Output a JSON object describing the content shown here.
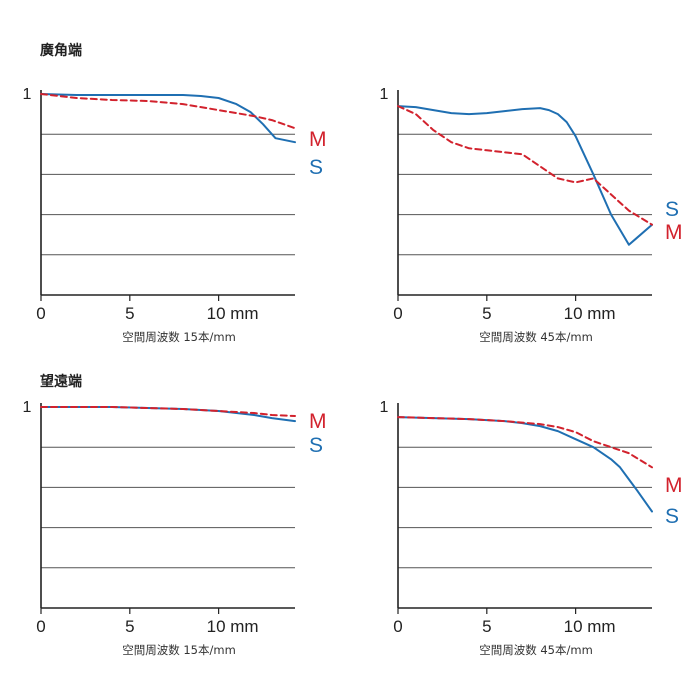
{
  "sections": [
    {
      "title": "廣角端"
    },
    {
      "title": "望遠端"
    }
  ],
  "colors": {
    "S": "#1f6fb2",
    "M": "#d2222d",
    "grid": "#555555",
    "axis": "#222222"
  },
  "chart_data": [
    {
      "type": "line",
      "section": 0,
      "xlabel": "空間周波数 15本/mm",
      "xticks": [
        "0",
        "5",
        "10 mm"
      ],
      "xtick_values": [
        0,
        5,
        10
      ],
      "ytick_label": "1",
      "xlim": [
        0,
        14.3
      ],
      "ylim": [
        0,
        1
      ],
      "grid_y": [
        0.2,
        0.4,
        0.6,
        0.8
      ],
      "series": [
        {
          "name": "S",
          "style": "solid",
          "x": [
            0,
            2,
            4,
            6,
            8,
            9,
            10,
            11,
            11.8,
            12.5,
            13.2,
            14.3
          ],
          "y": [
            1.0,
            0.995,
            0.995,
            0.995,
            0.995,
            0.99,
            0.98,
            0.95,
            0.91,
            0.85,
            0.78,
            0.76
          ]
        },
        {
          "name": "M",
          "style": "dashed",
          "x": [
            0,
            2,
            4,
            6,
            8,
            10,
            12,
            13,
            14.3
          ],
          "y": [
            1.0,
            0.98,
            0.97,
            0.965,
            0.95,
            0.92,
            0.89,
            0.87,
            0.83
          ]
        }
      ],
      "legend_order": [
        "M",
        "S"
      ],
      "legend_placement": "right"
    },
    {
      "type": "line",
      "section": 0,
      "xlabel": "空間周波数 45本/mm",
      "xticks": [
        "0",
        "5",
        "10 mm"
      ],
      "xtick_values": [
        0,
        5,
        10
      ],
      "ytick_label": "1",
      "xlim": [
        0,
        14.3
      ],
      "ylim": [
        0,
        1
      ],
      "grid_y": [
        0.2,
        0.4,
        0.6,
        0.8
      ],
      "series": [
        {
          "name": "S",
          "style": "solid",
          "x": [
            0,
            1,
            2,
            3,
            4,
            5,
            6,
            7,
            8,
            8.5,
            9,
            9.5,
            10,
            11,
            12,
            13,
            14.3
          ],
          "y": [
            0.94,
            0.935,
            0.92,
            0.905,
            0.9,
            0.905,
            0.915,
            0.925,
            0.93,
            0.92,
            0.9,
            0.86,
            0.79,
            0.6,
            0.4,
            0.25,
            0.35
          ]
        },
        {
          "name": "M",
          "style": "dashed",
          "x": [
            0,
            1,
            2,
            3,
            4,
            5,
            6,
            7,
            8,
            9,
            10,
            11,
            12,
            13,
            14.3
          ],
          "y": [
            0.94,
            0.9,
            0.82,
            0.76,
            0.73,
            0.72,
            0.71,
            0.7,
            0.64,
            0.58,
            0.56,
            0.58,
            0.5,
            0.42,
            0.35
          ]
        }
      ],
      "legend_order": [
        "S",
        "M"
      ],
      "legend_placement": "right"
    },
    {
      "type": "line",
      "section": 1,
      "xlabel": "空間周波数 15本/mm",
      "xticks": [
        "0",
        "5",
        "10 mm"
      ],
      "xtick_values": [
        0,
        5,
        10
      ],
      "ytick_label": "1",
      "xlim": [
        0,
        14.3
      ],
      "ylim": [
        0,
        1
      ],
      "grid_y": [
        0.2,
        0.4,
        0.6,
        0.8
      ],
      "series": [
        {
          "name": "S",
          "style": "solid",
          "x": [
            0,
            2,
            4,
            6,
            8,
            10,
            11,
            12,
            13,
            14.3
          ],
          "y": [
            1.0,
            1.0,
            1.0,
            0.995,
            0.99,
            0.98,
            0.97,
            0.96,
            0.945,
            0.93
          ]
        },
        {
          "name": "M",
          "style": "dashed",
          "x": [
            0,
            2,
            4,
            6,
            8,
            10,
            11,
            12,
            13,
            14.3
          ],
          "y": [
            1.0,
            1.0,
            1.0,
            0.995,
            0.99,
            0.98,
            0.975,
            0.97,
            0.96,
            0.955
          ]
        }
      ],
      "legend_order": [
        "M",
        "S"
      ],
      "legend_placement": "right"
    },
    {
      "type": "line",
      "section": 1,
      "xlabel": "空間周波数 45本/mm",
      "xticks": [
        "0",
        "5",
        "10 mm"
      ],
      "xtick_values": [
        0,
        5,
        10
      ],
      "ytick_label": "1",
      "xlim": [
        0,
        14.3
      ],
      "ylim": [
        0,
        1
      ],
      "grid_y": [
        0.2,
        0.4,
        0.6,
        0.8
      ],
      "series": [
        {
          "name": "S",
          "style": "solid",
          "x": [
            0,
            2,
            4,
            6,
            7,
            8,
            9,
            10,
            11,
            12,
            12.5,
            13,
            13.5,
            14.3
          ],
          "y": [
            0.95,
            0.945,
            0.94,
            0.93,
            0.92,
            0.905,
            0.88,
            0.84,
            0.8,
            0.74,
            0.7,
            0.64,
            0.58,
            0.48
          ]
        },
        {
          "name": "M",
          "style": "dashed",
          "x": [
            0,
            2,
            4,
            6,
            8,
            9,
            10,
            11,
            12,
            13,
            14.3
          ],
          "y": [
            0.95,
            0.945,
            0.94,
            0.93,
            0.915,
            0.9,
            0.875,
            0.83,
            0.8,
            0.77,
            0.7
          ]
        }
      ],
      "legend_order": [
        "M",
        "S"
      ],
      "legend_placement": "right"
    }
  ]
}
